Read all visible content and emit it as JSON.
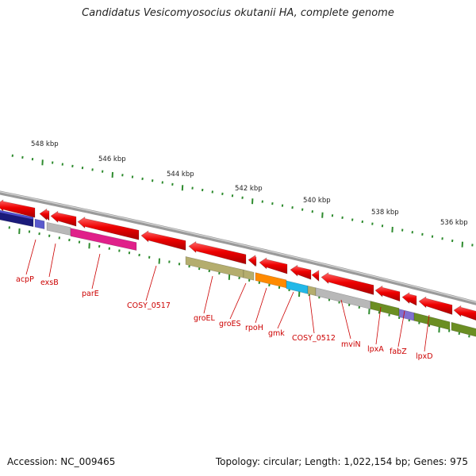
{
  "header": {
    "title": "Candidatus Vesicomyosocius okutanii HA, complete genome"
  },
  "footer": {
    "accession": "Accession: NC_009465",
    "summary": "Topology: circular; Length: 1,022,154 bp; Genes: 975"
  },
  "scale": {
    "labels": [
      {
        "text": "548 kbp",
        "kbp": 548
      },
      {
        "text": "546 kbp",
        "kbp": 546
      },
      {
        "text": "544 kbp",
        "kbp": 544
      },
      {
        "text": "542 kbp",
        "kbp": 542
      },
      {
        "text": "540 kbp",
        "kbp": 540
      },
      {
        "text": "538 kbp",
        "kbp": 538
      },
      {
        "text": "536 kbp",
        "kbp": 536
      }
    ]
  },
  "genes": [
    {
      "name": "acpP",
      "strand": "reverse",
      "color": "#e00000"
    },
    {
      "name": "exsB",
      "strand": "forward",
      "color": "#5a5acc"
    },
    {
      "name": "parE",
      "strand": "forward",
      "color": "#e0208a"
    },
    {
      "name": "COSY_0517",
      "strand": "reverse",
      "color": "#e00000"
    },
    {
      "name": "groEL",
      "strand": "forward",
      "color": "#b4ad6e"
    },
    {
      "name": "groES",
      "strand": "forward",
      "color": "#b4ad6e"
    },
    {
      "name": "rpoH",
      "strand": "forward",
      "color": "#ff8a00"
    },
    {
      "name": "gmk",
      "strand": "forward",
      "color": "#22b8e8"
    },
    {
      "name": "COSY_0512",
      "strand": "forward",
      "color": "#b4ad6e"
    },
    {
      "name": "mviN",
      "strand": "forward",
      "color": "#b8b8b8"
    },
    {
      "name": "lpxA",
      "strand": "forward",
      "color": "#6b8e23"
    },
    {
      "name": "fabZ",
      "strand": "forward",
      "color": "#8070d0"
    },
    {
      "name": "lpxD",
      "strand": "forward",
      "color": "#6b8e23"
    }
  ]
}
